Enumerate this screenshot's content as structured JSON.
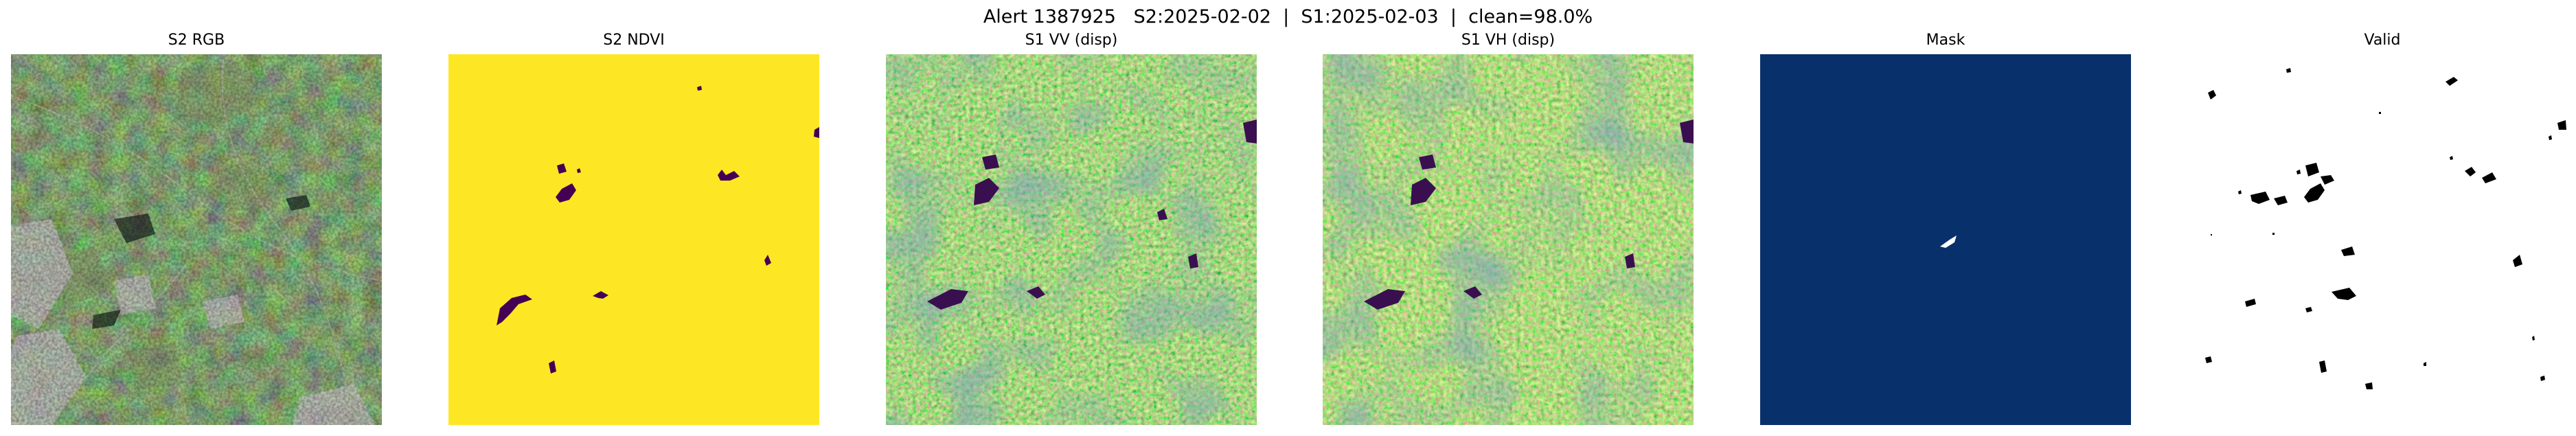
{
  "figure": {
    "suptitle": "Alert 1387925   S2:2025-02-02  |  S1:2025-02-03  |  clean=98.0%"
  },
  "panels": [
    {
      "title": "S2 RGB"
    },
    {
      "title": "S2 NDVI"
    },
    {
      "title": "S1 VV (disp)"
    },
    {
      "title": "S1 VH (disp)"
    },
    {
      "title": "Mask"
    },
    {
      "title": "Valid"
    }
  ],
  "colors": {
    "ndvi_high": "#fde725",
    "ndvi_low": "#440154",
    "mask_background": "#08306b",
    "mask_foreground": "#ffffff",
    "valid_background": "#ffffff",
    "valid_foreground": "#000000"
  }
}
